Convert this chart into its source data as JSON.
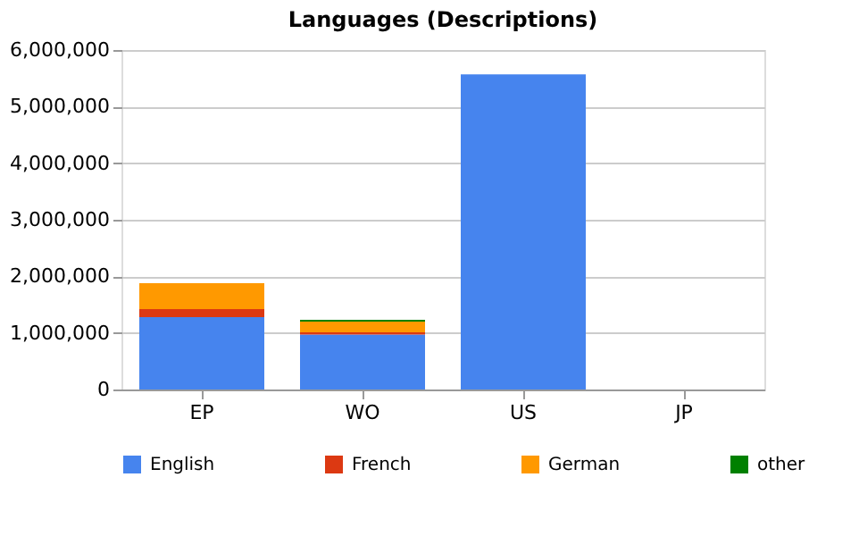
{
  "chart_data": {
    "type": "bar",
    "title": "Languages (Descriptions)",
    "stacked": true,
    "categories": [
      "EP",
      "WO",
      "US",
      "JP"
    ],
    "series": [
      {
        "name": "English",
        "color": "#4684ee",
        "values": [
          1280000,
          970000,
          5570000,
          null
        ]
      },
      {
        "name": "French",
        "color": "#dc3912",
        "values": [
          140000,
          40000,
          null,
          null
        ]
      },
      {
        "name": "German",
        "color": "#ff9900",
        "values": [
          460000,
          190000,
          null,
          null
        ]
      },
      {
        "name": "other",
        "color": "#008000",
        "values": [
          null,
          30000,
          null,
          null
        ]
      }
    ],
    "ylim": [
      0,
      6000000
    ],
    "yticks": [
      {
        "value": 0,
        "label": "0"
      },
      {
        "value": 1000000,
        "label": "1,000,000"
      },
      {
        "value": 2000000,
        "label": "2,000,000"
      },
      {
        "value": 3000000,
        "label": "3,000,000"
      },
      {
        "value": 4000000,
        "label": "4,000,000"
      },
      {
        "value": 5000000,
        "label": "5,000,000"
      },
      {
        "value": 6000000,
        "label": "6,000,000"
      }
    ],
    "grid": "y",
    "legend": "bottom"
  }
}
